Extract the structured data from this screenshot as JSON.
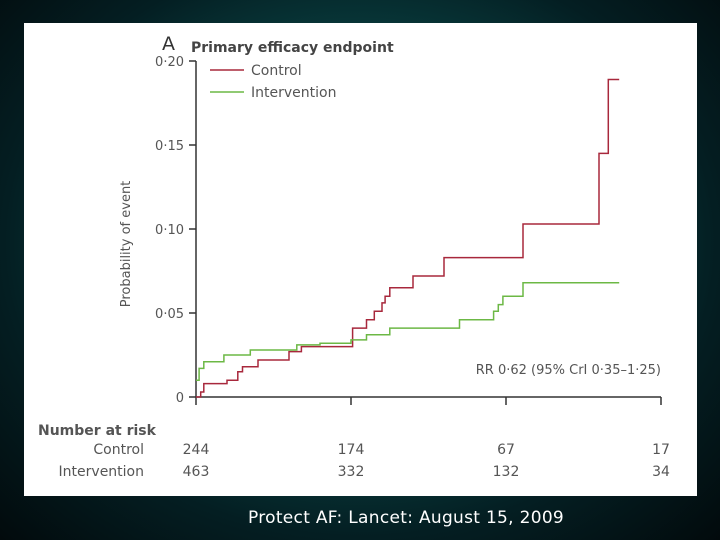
{
  "caption": "Protect AF: Lancet: August 15, 2009",
  "chart_data": {
    "type": "line",
    "step": true,
    "panel_letter": "A",
    "title": "Primary efficacy endpoint",
    "xlabel": "",
    "ylabel": "Probability of event",
    "ylim": [
      0,
      0.2
    ],
    "y_ticks": [
      "0",
      "0·05",
      "0·10",
      "0·15",
      "0·20"
    ],
    "y_tick_values": [
      0,
      0.05,
      0.1,
      0.15,
      0.2
    ],
    "x_ticks": [
      0,
      1,
      2,
      3
    ],
    "xlim": [
      0,
      3
    ],
    "legend_position": "top-left",
    "series": [
      {
        "name": "Control",
        "color": "#a8283c",
        "points": [
          [
            0.0,
            0.0
          ],
          [
            0.03,
            0.003
          ],
          [
            0.05,
            0.008
          ],
          [
            0.2,
            0.01
          ],
          [
            0.27,
            0.015
          ],
          [
            0.3,
            0.018
          ],
          [
            0.4,
            0.022
          ],
          [
            0.6,
            0.027
          ],
          [
            0.68,
            0.03
          ],
          [
            1.01,
            0.041
          ],
          [
            1.1,
            0.046
          ],
          [
            1.15,
            0.051
          ],
          [
            1.2,
            0.056
          ],
          [
            1.22,
            0.06
          ],
          [
            1.25,
            0.065
          ],
          [
            1.4,
            0.072
          ],
          [
            1.6,
            0.083
          ],
          [
            2.11,
            0.103
          ],
          [
            2.6,
            0.145
          ],
          [
            2.66,
            0.189
          ],
          [
            2.73,
            0.189
          ]
        ]
      },
      {
        "name": "Intervention",
        "color": "#6cb845",
        "points": [
          [
            0.0,
            0.01
          ],
          [
            0.02,
            0.017
          ],
          [
            0.05,
            0.021
          ],
          [
            0.18,
            0.025
          ],
          [
            0.35,
            0.028
          ],
          [
            0.65,
            0.031
          ],
          [
            0.8,
            0.032
          ],
          [
            1.0,
            0.034
          ],
          [
            1.1,
            0.037
          ],
          [
            1.25,
            0.041
          ],
          [
            1.7,
            0.046
          ],
          [
            1.92,
            0.051
          ],
          [
            1.95,
            0.055
          ],
          [
            1.98,
            0.06
          ],
          [
            2.11,
            0.068
          ],
          [
            2.73,
            0.068
          ]
        ]
      }
    ],
    "annotation": "RR 0·62 (95% CrI 0·35–1·25)",
    "risk_table": {
      "title": "Number at risk",
      "rows": [
        {
          "label": "Control",
          "values": [
            "244",
            "174",
            "67",
            "17"
          ]
        },
        {
          "label": "Intervention",
          "values": [
            "463",
            "332",
            "132",
            "34"
          ]
        }
      ]
    }
  }
}
